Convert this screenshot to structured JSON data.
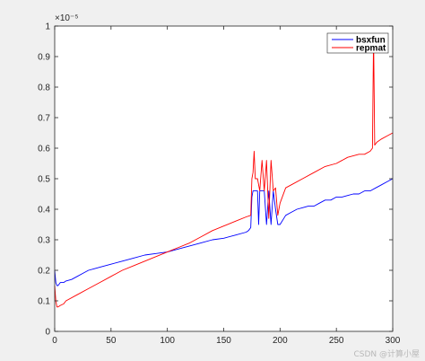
{
  "chart_data": {
    "type": "line",
    "title": "",
    "xlabel": "",
    "ylabel": "",
    "xlim": [
      0,
      300
    ],
    "ylim": [
      0,
      1.0
    ],
    "y_exponent_label": "×10⁻⁵",
    "xticks": [
      "0",
      "50",
      "100",
      "150",
      "200",
      "250",
      "300"
    ],
    "yticks": [
      "0",
      "0.1",
      "0.2",
      "0.3",
      "0.4",
      "0.5",
      "0.6",
      "0.7",
      "0.8",
      "0.9",
      "1"
    ],
    "xtick_values": [
      0,
      50,
      100,
      150,
      200,
      250,
      300
    ],
    "ytick_values": [
      0,
      0.1,
      0.2,
      0.3,
      0.4,
      0.5,
      0.6,
      0.7,
      0.8,
      0.9,
      1.0
    ],
    "grid": false,
    "legend_position": "top-right",
    "series": [
      {
        "name": "bsxfun",
        "color": "#0000ff",
        "x": [
          0,
          1,
          2,
          3,
          5,
          8,
          10,
          15,
          20,
          25,
          30,
          35,
          40,
          50,
          60,
          70,
          80,
          90,
          100,
          110,
          120,
          130,
          140,
          150,
          160,
          170,
          172,
          174,
          175,
          176,
          178,
          180,
          181,
          182,
          184,
          186,
          188,
          190,
          192,
          194,
          196,
          198,
          200,
          205,
          210,
          215,
          220,
          225,
          230,
          235,
          240,
          245,
          250,
          255,
          260,
          265,
          270,
          275,
          280,
          285,
          290,
          295,
          300
        ],
        "values": [
          0.2,
          0.16,
          0.15,
          0.15,
          0.16,
          0.16,
          0.165,
          0.17,
          0.18,
          0.19,
          0.2,
          0.205,
          0.21,
          0.22,
          0.23,
          0.24,
          0.25,
          0.255,
          0.26,
          0.27,
          0.28,
          0.29,
          0.3,
          0.305,
          0.315,
          0.325,
          0.33,
          0.34,
          0.44,
          0.46,
          0.46,
          0.46,
          0.35,
          0.46,
          0.46,
          0.46,
          0.35,
          0.46,
          0.35,
          0.46,
          0.4,
          0.35,
          0.35,
          0.38,
          0.39,
          0.4,
          0.405,
          0.41,
          0.41,
          0.42,
          0.43,
          0.43,
          0.44,
          0.44,
          0.445,
          0.45,
          0.45,
          0.46,
          0.46,
          0.47,
          0.48,
          0.49,
          0.5
        ]
      },
      {
        "name": "repmat",
        "color": "#ff0000",
        "x": [
          0,
          1,
          2,
          3,
          5,
          8,
          10,
          20,
          30,
          40,
          50,
          60,
          70,
          80,
          90,
          100,
          110,
          120,
          130,
          140,
          150,
          160,
          170,
          174,
          175,
          176,
          177,
          178,
          180,
          182,
          184,
          186,
          188,
          190,
          192,
          194,
          196,
          198,
          200,
          205,
          210,
          220,
          230,
          240,
          250,
          260,
          270,
          275,
          280,
          282,
          283,
          284,
          286,
          290,
          295,
          300
        ],
        "values": [
          0.15,
          0.1,
          0.08,
          0.08,
          0.085,
          0.09,
          0.1,
          0.12,
          0.14,
          0.16,
          0.18,
          0.2,
          0.215,
          0.23,
          0.245,
          0.26,
          0.275,
          0.29,
          0.31,
          0.33,
          0.345,
          0.36,
          0.375,
          0.38,
          0.5,
          0.52,
          0.59,
          0.5,
          0.5,
          0.46,
          0.56,
          0.46,
          0.56,
          0.37,
          0.56,
          0.46,
          0.47,
          0.38,
          0.42,
          0.47,
          0.48,
          0.5,
          0.52,
          0.54,
          0.55,
          0.57,
          0.58,
          0.58,
          0.59,
          0.6,
          0.97,
          0.61,
          0.62,
          0.63,
          0.64,
          0.65
        ]
      }
    ]
  },
  "footer": {
    "watermark": "CSDN @计算小屋"
  }
}
